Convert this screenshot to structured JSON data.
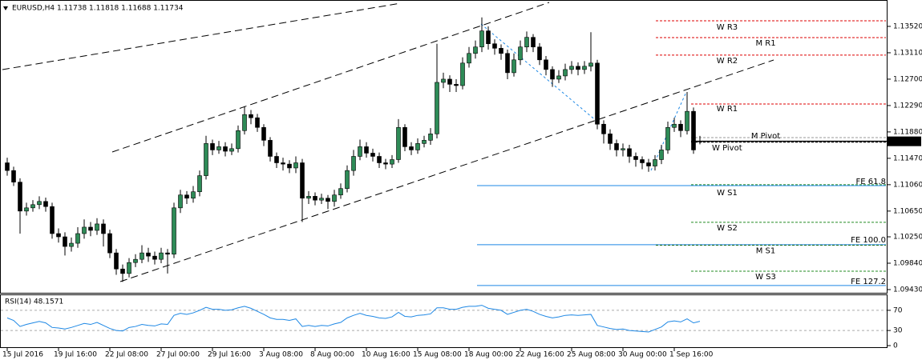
{
  "chart_data": [
    {
      "type": "candlestick",
      "title": "EURUSD,H4  1.11738 1.11818 1.11688 1.11734",
      "categories": [
        "15 Jul 2016",
        null,
        null,
        null,
        null,
        null,
        null,
        null,
        "19 Jul 16:00",
        null,
        null,
        null,
        null,
        null,
        null,
        null,
        "22 Jul 08:00",
        null,
        null,
        null,
        null,
        null,
        null,
        null,
        "27 Jul 00:00",
        null,
        null,
        null,
        null,
        null,
        null,
        null,
        "29 Jul 16:00",
        null,
        null,
        null,
        null,
        null,
        null,
        null,
        "3 Aug 08:00",
        null,
        null,
        null,
        null,
        null,
        null,
        null,
        "8 Aug 00:00",
        null,
        null,
        null,
        null,
        null,
        null,
        null,
        "10 Aug 16:00",
        null,
        null,
        null,
        null,
        null,
        null,
        null,
        "15 Aug 08:00",
        null,
        null,
        null,
        null,
        null,
        null,
        null,
        "18 Aug 00:00",
        null,
        null,
        null,
        null,
        null,
        null,
        null,
        "22 Aug 16:00",
        null,
        null,
        null,
        null,
        null,
        null,
        null,
        "25 Aug 08:00",
        null,
        null,
        null,
        null,
        null,
        null,
        null,
        "30 Aug 00:00",
        null,
        null,
        null,
        null,
        null,
        null,
        null,
        "1 Sep 16:00",
        null,
        null,
        null,
        null
      ],
      "open": [
        1.114,
        1.1128,
        1.111,
        1.1065,
        1.107,
        1.1075,
        1.108,
        1.1072,
        1.103,
        1.1025,
        1.101,
        1.1015,
        1.103,
        1.104,
        1.1035,
        1.1045,
        1.103,
        1.1,
        1.0975,
        1.0968,
        1.0985,
        1.099,
        1.1,
        1.0995,
        1.099,
        1.1,
        1.0998,
        1.107,
        1.109,
        1.1085,
        1.1095,
        1.112,
        1.117,
        1.116,
        1.1165,
        1.1158,
        1.1162,
        1.119,
        1.1215,
        1.121,
        1.1195,
        1.1175,
        1.115,
        1.114,
        1.1138,
        1.1132,
        1.114,
        1.1085,
        1.1088,
        1.1082,
        1.1085,
        1.108,
        1.109,
        1.11,
        1.1128,
        1.115,
        1.1165,
        1.1155,
        1.115,
        1.114,
        1.1138,
        1.1145,
        1.1195,
        1.1165,
        1.116,
        1.117,
        1.1175,
        1.1185,
        1.1265,
        1.127,
        1.1262,
        1.126,
        1.1295,
        1.131,
        1.132,
        1.1345,
        1.1325,
        1.1318,
        1.131,
        1.128,
        1.13,
        1.132,
        1.1335,
        1.132,
        1.13,
        1.1285,
        1.127,
        1.1275,
        1.1285,
        1.129,
        1.1285,
        1.129,
        1.1295,
        1.12,
        1.1185,
        1.117,
        1.116,
        1.1162,
        1.115,
        1.1145,
        1.114,
        1.1135,
        1.1145,
        1.116,
        1.1195,
        1.12,
        1.119,
        1.122,
        1.11738
      ],
      "high": [
        1.1148,
        1.1134,
        1.1116,
        1.1078,
        1.1082,
        1.1088,
        1.1086,
        1.1078,
        1.1038,
        1.1032,
        1.1024,
        1.104,
        1.1052,
        1.1048,
        1.1054,
        1.1052,
        1.1036,
        1.1006,
        1.0982,
        1.0992,
        1.0998,
        1.1012,
        1.1008,
        1.1002,
        1.1008,
        1.1006,
        1.1078,
        1.1098,
        1.1096,
        1.1104,
        1.1128,
        1.1182,
        1.1176,
        1.1174,
        1.1172,
        1.117,
        1.1198,
        1.1228,
        1.1222,
        1.1216,
        1.12,
        1.118,
        1.1156,
        1.1148,
        1.1144,
        1.115,
        1.1146,
        1.1096,
        1.1094,
        1.1092,
        1.109,
        1.1098,
        1.1108,
        1.1136,
        1.116,
        1.1176,
        1.1172,
        1.1162,
        1.1156,
        1.1146,
        1.1152,
        1.1208,
        1.12,
        1.1172,
        1.1178,
        1.1182,
        1.1194,
        1.1325,
        1.128,
        1.1276,
        1.127,
        1.1304,
        1.132,
        1.133,
        1.1366,
        1.1352,
        1.1332,
        1.1324,
        1.1316,
        1.131,
        1.133,
        1.1344,
        1.134,
        1.1326,
        1.1306,
        1.129,
        1.1284,
        1.1294,
        1.1298,
        1.1296,
        1.1298,
        1.1343,
        1.13,
        1.1206,
        1.1192,
        1.1176,
        1.117,
        1.1168,
        1.1156,
        1.115,
        1.1146,
        1.1152,
        1.1168,
        1.1204,
        1.121,
        1.1206,
        1.125,
        1.1226,
        1.11818
      ],
      "low": [
        1.112,
        1.1104,
        1.103,
        1.1058,
        1.1064,
        1.1068,
        1.1064,
        1.1022,
        1.1016,
        1.0996,
        1.1002,
        1.1008,
        1.1022,
        1.1026,
        1.1028,
        1.101,
        1.0992,
        1.0966,
        1.0955,
        1.0962,
        1.0978,
        1.0984,
        1.0986,
        1.0982,
        1.0984,
        1.0968,
        1.0992,
        1.1062,
        1.1076,
        1.1078,
        1.1088,
        1.1114,
        1.1152,
        1.1154,
        1.115,
        1.1152,
        1.1156,
        1.1184,
        1.12,
        1.1188,
        1.1166,
        1.1142,
        1.1132,
        1.1128,
        1.1124,
        1.1124,
        1.1048,
        1.1076,
        1.1074,
        1.1076,
        1.1068,
        1.1072,
        1.1084,
        1.1094,
        1.112,
        1.1144,
        1.1148,
        1.1142,
        1.1132,
        1.113,
        1.1132,
        1.114,
        1.1158,
        1.1152,
        1.1154,
        1.1164,
        1.1168,
        1.1178,
        1.1256,
        1.125,
        1.125,
        1.1254,
        1.1288,
        1.1302,
        1.1312,
        1.1316,
        1.1308,
        1.13,
        1.127,
        1.1274,
        1.1292,
        1.1312,
        1.1312,
        1.1292,
        1.1276,
        1.1258,
        1.1264,
        1.1268,
        1.1278,
        1.1276,
        1.1278,
        1.1282,
        1.1192,
        1.117,
        1.116,
        1.115,
        1.115,
        1.114,
        1.1134,
        1.113,
        1.1126,
        1.1128,
        1.1138,
        1.1154,
        1.1188,
        1.118,
        1.1184,
        1.1154,
        1.11688
      ],
      "close": [
        1.1128,
        1.111,
        1.1065,
        1.107,
        1.1075,
        1.108,
        1.1072,
        1.103,
        1.1025,
        1.101,
        1.1015,
        1.103,
        1.104,
        1.1035,
        1.1045,
        1.103,
        1.1,
        1.0975,
        1.0968,
        1.0985,
        1.099,
        1.1,
        1.0995,
        1.099,
        1.1,
        1.0998,
        1.107,
        1.109,
        1.1085,
        1.1095,
        1.112,
        1.117,
        1.116,
        1.1165,
        1.1158,
        1.1162,
        1.119,
        1.1215,
        1.121,
        1.1195,
        1.1175,
        1.115,
        1.114,
        1.1138,
        1.1132,
        1.114,
        1.1085,
        1.1088,
        1.1082,
        1.1085,
        1.108,
        1.109,
        1.11,
        1.1128,
        1.115,
        1.1165,
        1.1155,
        1.115,
        1.114,
        1.1138,
        1.1145,
        1.1195,
        1.1165,
        1.116,
        1.117,
        1.1175,
        1.1185,
        1.1265,
        1.127,
        1.1262,
        1.126,
        1.1295,
        1.131,
        1.132,
        1.1345,
        1.1325,
        1.1318,
        1.131,
        1.128,
        1.13,
        1.132,
        1.1335,
        1.132,
        1.13,
        1.1285,
        1.127,
        1.1275,
        1.1285,
        1.129,
        1.1285,
        1.129,
        1.1295,
        1.12,
        1.1185,
        1.117,
        1.116,
        1.1162,
        1.115,
        1.1145,
        1.114,
        1.1135,
        1.1145,
        1.116,
        1.1195,
        1.12,
        1.119,
        1.122,
        1.116,
        1.11734
      ],
      "up_color": "#2e8b57",
      "down_color": "#000000",
      "ylim": [
        1.0938,
        1.1393
      ],
      "yticks": [
        {
          "value": 1.1352,
          "label": "1.13520"
        },
        {
          "value": 1.1311,
          "label": "1.13110"
        },
        {
          "value": 1.127,
          "label": "1.12700"
        },
        {
          "value": 1.1229,
          "label": "1.12290"
        },
        {
          "value": 1.1188,
          "label": "1.11880"
        },
        {
          "value": 1.1147,
          "label": "1.11470"
        },
        {
          "value": 1.1106,
          "label": "1.11060"
        },
        {
          "value": 1.1065,
          "label": "1.10650"
        },
        {
          "value": 1.1025,
          "label": "1.10250"
        },
        {
          "value": 1.0984,
          "label": "1.09840"
        },
        {
          "value": 1.0943,
          "label": "1.09430"
        }
      ],
      "last_price": 1.11734,
      "levels": [
        {
          "label": "W R3",
          "value": 1.13607,
          "color": "#dd0000",
          "style": "dashed"
        },
        {
          "label": "M R1",
          "value": 1.13346,
          "color": "#dd0000",
          "style": "dashed"
        },
        {
          "label": "W R2",
          "value": 1.13073,
          "color": "#dd0000",
          "style": "dashed"
        },
        {
          "label": "W R1",
          "value": 1.12314,
          "color": "#dd0000",
          "style": "dashed"
        },
        {
          "label": "M Pivot",
          "value": 1.11792,
          "color": "#999999",
          "style": "dashed"
        },
        {
          "label": "W Pivot",
          "value": 1.1172,
          "color": "#000000",
          "style": "dashed"
        },
        {
          "label": "FE 61.8",
          "value": 1.11046,
          "color": "#1e88e5",
          "style": "solid"
        },
        {
          "label": "W S1",
          "value": 1.1106,
          "color": "#228b22",
          "style": "dashed"
        },
        {
          "label": "W S2",
          "value": 1.10475,
          "color": "#228b22",
          "style": "dashed"
        },
        {
          "label": "FE 100.0",
          "value": 1.10127,
          "color": "#1e88e5",
          "style": "solid"
        },
        {
          "label": "M S1",
          "value": 1.1012,
          "color": "#1a6b1a",
          "style": "dashed"
        },
        {
          "label": "W S3",
          "value": 1.09716,
          "color": "#228b22",
          "style": "dashed"
        },
        {
          "label": "FE 127.2",
          "value": 1.09493,
          "color": "#1e88e5",
          "style": "solid"
        }
      ]
    },
    {
      "type": "line",
      "title": "RSI(14) 48.1571",
      "color": "#1e88e5",
      "values": [
        55,
        50,
        38,
        42,
        45,
        48,
        45,
        36,
        35,
        33,
        36,
        40,
        44,
        42,
        46,
        40,
        34,
        30,
        29,
        36,
        38,
        42,
        40,
        39,
        43,
        42,
        60,
        64,
        62,
        65,
        70,
        76,
        72,
        72,
        70,
        71,
        75,
        78,
        74,
        68,
        62,
        55,
        52,
        52,
        50,
        53,
        38,
        40,
        38,
        40,
        39,
        43,
        46,
        55,
        60,
        64,
        60,
        58,
        55,
        54,
        57,
        66,
        58,
        57,
        60,
        61,
        63,
        75,
        75,
        72,
        72,
        76,
        78,
        78,
        80,
        74,
        72,
        70,
        62,
        66,
        70,
        72,
        68,
        62,
        58,
        55,
        57,
        60,
        61,
        60,
        61,
        62,
        40,
        37,
        34,
        32,
        33,
        30,
        29,
        28,
        27,
        32,
        37,
        47,
        49,
        47,
        53,
        45,
        48.1571
      ],
      "ylim": [
        0,
        100
      ],
      "yticks": [
        0,
        30,
        70
      ]
    }
  ]
}
